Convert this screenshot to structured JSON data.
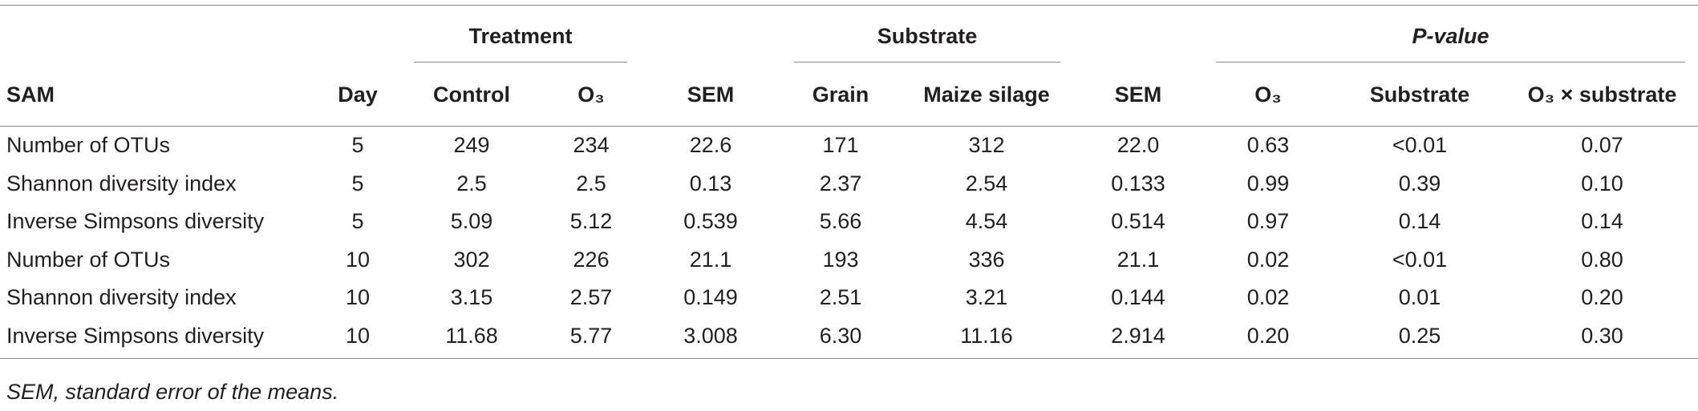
{
  "table": {
    "group_headers": [
      "Treatment",
      "Substrate",
      "P-value"
    ],
    "columns": [
      "SAM",
      "Day",
      "Control",
      "O₃",
      "SEM",
      "Grain",
      "Maize silage",
      "SEM",
      "O₃",
      "Substrate",
      "O₃ × substrate"
    ],
    "rows": [
      [
        "Number of OTUs",
        "5",
        "249",
        "234",
        "22.6",
        "171",
        "312",
        "22.0",
        "0.63",
        "<0.01",
        "0.07"
      ],
      [
        "Shannon diversity index",
        "5",
        "2.5",
        "2.5",
        "0.13",
        "2.37",
        "2.54",
        "0.133",
        "0.99",
        "0.39",
        "0.10"
      ],
      [
        "Inverse Simpsons diversity",
        "5",
        "5.09",
        "5.12",
        "0.539",
        "5.66",
        "4.54",
        "0.514",
        "0.97",
        "0.14",
        "0.14"
      ],
      [
        "Number of OTUs",
        "10",
        "302",
        "226",
        "21.1",
        "193",
        "336",
        "21.1",
        "0.02",
        "<0.01",
        "0.80"
      ],
      [
        "Shannon diversity index",
        "10",
        "3.15",
        "2.57",
        "0.149",
        "2.51",
        "3.21",
        "0.144",
        "0.02",
        "0.01",
        "0.20"
      ],
      [
        "Inverse Simpsons diversity",
        "10",
        "11.68",
        "5.77",
        "3.008",
        "6.30",
        "11.16",
        "2.914",
        "0.20",
        "0.25",
        "0.30"
      ]
    ]
  },
  "footnote": "SEM, standard error of the means."
}
